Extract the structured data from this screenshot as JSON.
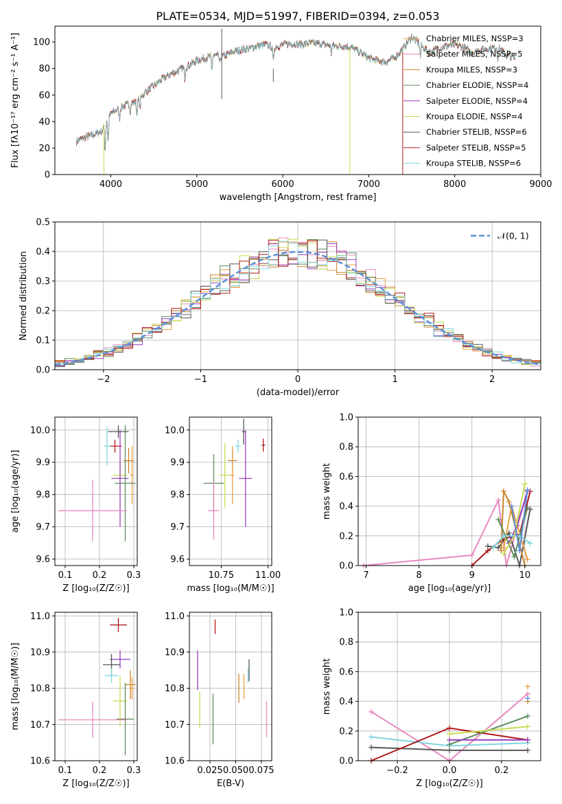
{
  "figure": {
    "title": "PLATE=0534, MJD=51997, FIBERID=0394, z=0.053"
  },
  "colors": {
    "chabrier_miles": "#e8a040",
    "salpeter_miles": "#e889c0",
    "kroupa_miles": "#c8842a",
    "chabrier_elodie": "#5c8c5c",
    "salpeter_elodie": "#9b3fbf",
    "kroupa_elodie": "#c8dc50",
    "chabrier_stelib": "#555555",
    "salpeter_stelib": "#b01818",
    "kroupa_stelib": "#7fd6e0",
    "normal_curve": "#5b8fd9",
    "grid": "#b0b0b0"
  },
  "chart_data": [
    {
      "id": "spectrum",
      "type": "line",
      "xlabel": "wavelength [Angstrom, rest frame]",
      "ylabel": "Flux [fλ10⁻¹⁷ erg cm⁻² s⁻¹ A⁻¹]",
      "xlim": [
        3350,
        9000
      ],
      "ylim": [
        0,
        112
      ],
      "xticks": [
        4000,
        5000,
        6000,
        7000,
        8000,
        9000
      ],
      "yticks": [
        0,
        20,
        40,
        60,
        80,
        100
      ],
      "grid": false,
      "legend_position": "upper-right",
      "series": [
        {
          "name": "Chabrier MILES, NSSP=3",
          "color_key": "chabrier_miles"
        },
        {
          "name": "Salpeter MILES, NSSP=5",
          "color_key": "salpeter_miles"
        },
        {
          "name": "Kroupa MILES, NSSP=3",
          "color_key": "kroupa_miles"
        },
        {
          "name": "Chabrier ELODIE, NSSP=4",
          "color_key": "chabrier_elodie"
        },
        {
          "name": "Salpeter ELODIE, NSSP=4",
          "color_key": "salpeter_elodie"
        },
        {
          "name": "Kroupa ELODIE, NSSP=4",
          "color_key": "kroupa_elodie"
        },
        {
          "name": "Chabrier STELIB, NSSP=6",
          "color_key": "chabrier_stelib"
        },
        {
          "name": "Salpeter STELIB, NSSP=5",
          "color_key": "salpeter_stelib"
        },
        {
          "name": "Kroupa STELIB, NSSP=6",
          "color_key": "kroupa_stelib"
        }
      ],
      "continuum": [
        [
          3600,
          25
        ],
        [
          3700,
          28
        ],
        [
          3800,
          30
        ],
        [
          3900,
          33
        ],
        [
          3950,
          40
        ],
        [
          4000,
          46
        ],
        [
          4100,
          50
        ],
        [
          4200,
          53
        ],
        [
          4300,
          55
        ],
        [
          4400,
          62
        ],
        [
          4500,
          67
        ],
        [
          4600,
          72
        ],
        [
          4700,
          76
        ],
        [
          4800,
          79
        ],
        [
          4900,
          82
        ],
        [
          5000,
          86
        ],
        [
          5100,
          88
        ],
        [
          5200,
          90
        ],
        [
          5300,
          89
        ],
        [
          5400,
          92
        ],
        [
          5500,
          94
        ],
        [
          5600,
          95
        ],
        [
          5700,
          97
        ],
        [
          5800,
          98
        ],
        [
          5900,
          96
        ],
        [
          6000,
          98
        ],
        [
          6100,
          99
        ],
        [
          6200,
          98
        ],
        [
          6300,
          99
        ],
        [
          6400,
          99
        ],
        [
          6500,
          98
        ],
        [
          6600,
          97
        ],
        [
          6700,
          97
        ],
        [
          6800,
          96
        ],
        [
          6900,
          92
        ],
        [
          7000,
          88
        ],
        [
          7100,
          86
        ],
        [
          7200,
          85
        ],
        [
          7300,
          88
        ],
        [
          7400,
          95
        ],
        [
          7500,
          104
        ],
        [
          7600,
          98
        ],
        [
          7700,
          92
        ],
        [
          7800,
          95
        ],
        [
          7900,
          97
        ],
        [
          8000,
          98
        ],
        [
          8100,
          96
        ],
        [
          8200,
          92
        ],
        [
          8300,
          94
        ],
        [
          8400,
          95
        ],
        [
          8500,
          96
        ],
        [
          8600,
          90
        ],
        [
          8700,
          88
        ]
      ],
      "absorption_lines": [
        [
          3934,
          20
        ],
        [
          3969,
          18
        ],
        [
          4101,
          8
        ],
        [
          4227,
          6
        ],
        [
          4304,
          10
        ],
        [
          4340,
          8
        ],
        [
          4861,
          8
        ],
        [
          5175,
          12
        ],
        [
          5270,
          6
        ],
        [
          5890,
          12
        ],
        [
          6563,
          6
        ],
        [
          7600,
          10
        ],
        [
          8500,
          8
        ]
      ],
      "spikes": [
        {
          "x": 3920,
          "y0": 0,
          "y1": 38,
          "color_key": "kroupa_elodie"
        },
        {
          "x": 5290,
          "y0": 57,
          "y1": 110,
          "color_key": "chabrier_stelib"
        },
        {
          "x": 6780,
          "y0": 0,
          "y1": 95,
          "color_key": "kroupa_elodie"
        },
        {
          "x": 7395,
          "y0": 0,
          "y1": 92,
          "color_key": "salpeter_stelib"
        },
        {
          "x": 5890,
          "y0": 70,
          "y1": 80,
          "color_key": "chabrier_stelib"
        }
      ]
    },
    {
      "id": "residuals",
      "type": "histogram",
      "xlabel": "(data-model)/error",
      "ylabel": "Normed distribution",
      "xlim": [
        -2.5,
        2.5
      ],
      "ylim": [
        0,
        0.5
      ],
      "xticks": [
        -2,
        -1,
        0,
        1,
        2
      ],
      "yticks": [
        0.0,
        0.1,
        0.2,
        0.3,
        0.4,
        0.5
      ],
      "grid": true,
      "legend_position": "upper-right",
      "curve": {
        "name": "𝒩(0, 1)",
        "mean": 0,
        "sigma": 1,
        "color_key": "normal_curve"
      },
      "bin_width": 0.1
    },
    {
      "id": "age_vs_z",
      "type": "errorbar",
      "xlabel": "Z [log₁₀(Z/Z☉)]",
      "ylabel": "age  [log₁₀(age/yr)]",
      "xlim": [
        0.07,
        0.31
      ],
      "ylim": [
        9.58,
        10.04
      ],
      "xticks": [
        0.1,
        0.2,
        0.3
      ],
      "yticks": [
        9.6,
        9.7,
        9.8,
        9.9,
        10.0
      ],
      "grid": true,
      "points": [
        {
          "x": 0.255,
          "y": 9.995,
          "xerr": 0.03,
          "yerr": 0.02,
          "c": "chabrier_stelib"
        },
        {
          "x": 0.245,
          "y": 9.95,
          "xerr": 0.02,
          "yerr": 0.02,
          "c": "salpeter_stelib"
        },
        {
          "x": 0.222,
          "y": 9.95,
          "xerr": 0.01,
          "yerr": 0.06,
          "c": "kroupa_stelib"
        },
        {
          "x": 0.285,
          "y": 9.905,
          "xerr": 0.015,
          "yerr": 0.04,
          "c": "kroupa_miles"
        },
        {
          "x": 0.295,
          "y": 9.86,
          "xerr": 0.005,
          "yerr": 0.09,
          "c": "chabrier_miles"
        },
        {
          "x": 0.26,
          "y": 9.86,
          "xerr": 0.02,
          "yerr": 0.05,
          "c": "kroupa_elodie"
        },
        {
          "x": 0.26,
          "y": 9.85,
          "xerr": 0.025,
          "yerr": 0.15,
          "c": "salpeter_elodie"
        },
        {
          "x": 0.275,
          "y": 9.835,
          "xerr": 0.03,
          "yerr": 0.18,
          "c": "chabrier_elodie"
        },
        {
          "x": 0.18,
          "y": 9.75,
          "xerr": 0.1,
          "yerr": 0.095,
          "c": "salpeter_miles"
        }
      ]
    },
    {
      "id": "age_vs_mass",
      "type": "errorbar",
      "xlabel": "mass [log₁₀(M/M☉)]",
      "ylabel": "",
      "xlim": [
        10.58,
        11.02
      ],
      "ylim": [
        9.58,
        10.04
      ],
      "xticks": [
        10.75,
        11.0
      ],
      "yticks": [
        9.6,
        9.7,
        9.8,
        9.9,
        10.0
      ],
      "grid": true,
      "points": [
        {
          "x": 10.87,
          "y": 9.995,
          "xerr": 0.01,
          "yerr": 0.04,
          "c": "chabrier_stelib"
        },
        {
          "x": 10.975,
          "y": 9.953,
          "xerr": 0.01,
          "yerr": 0.02,
          "c": "salpeter_stelib"
        },
        {
          "x": 10.84,
          "y": 9.95,
          "xerr": 0.015,
          "yerr": 0.02,
          "c": "kroupa_stelib"
        },
        {
          "x": 10.81,
          "y": 9.905,
          "xerr": 0.025,
          "yerr": 0.03,
          "c": "kroupa_miles"
        },
        {
          "x": 10.81,
          "y": 9.86,
          "xerr": 0.01,
          "yerr": 0.09,
          "c": "chabrier_miles"
        },
        {
          "x": 10.77,
          "y": 9.86,
          "xerr": 0.03,
          "yerr": 0.1,
          "c": "kroupa_elodie"
        },
        {
          "x": 10.88,
          "y": 9.85,
          "xerr": 0.035,
          "yerr": 0.15,
          "c": "salpeter_elodie"
        },
        {
          "x": 10.71,
          "y": 9.835,
          "xerr": 0.055,
          "yerr": 0.09,
          "c": "chabrier_elodie"
        },
        {
          "x": 10.71,
          "y": 9.75,
          "xerr": 0.03,
          "yerr": 0.09,
          "c": "salpeter_miles"
        }
      ]
    },
    {
      "id": "weight_vs_age",
      "type": "line",
      "xlabel": "age  [log₁₀(age/yr)]",
      "ylabel": "mass weight",
      "xlim": [
        6.85,
        10.3
      ],
      "ylim": [
        0,
        1.0
      ],
      "xticks": [
        7,
        8,
        9,
        10
      ],
      "yticks": [
        0.0,
        0.2,
        0.4,
        0.6,
        0.8,
        1.0
      ],
      "grid": true,
      "series": [
        {
          "c": "salpeter_miles",
          "x": [
            6.95,
            9.0,
            9.5,
            9.65,
            10.05
          ],
          "y": [
            0.0,
            0.07,
            0.44,
            0.0,
            0.5
          ]
        },
        {
          "c": "salpeter_stelib",
          "x": [
            9.0,
            9.3,
            9.6,
            9.9,
            10.1
          ],
          "y": [
            0.0,
            0.1,
            0.18,
            0.21,
            0.5
          ]
        },
        {
          "c": "chabrier_stelib",
          "x": [
            9.3,
            9.5,
            9.7,
            9.9,
            10.1
          ],
          "y": [
            0.13,
            0.12,
            0.22,
            0.0,
            0.38
          ]
        },
        {
          "c": "kroupa_miles",
          "x": [
            9.55,
            9.6,
            9.7,
            10.0
          ],
          "y": [
            0.1,
            0.5,
            0.43,
            0.0
          ]
        },
        {
          "c": "chabrier_miles",
          "x": [
            9.6,
            9.75,
            10.05
          ],
          "y": [
            0.12,
            0.4,
            0.04
          ]
        },
        {
          "c": "salpeter_elodie",
          "x": [
            9.7,
            9.85,
            10.05
          ],
          "y": [
            0.15,
            0.27,
            0.5
          ]
        },
        {
          "c": "chabrier_elodie",
          "x": [
            9.5,
            9.8,
            10.05
          ],
          "y": [
            0.31,
            0.06,
            0.39
          ]
        },
        {
          "c": "kroupa_elodie",
          "x": [
            9.6,
            9.8,
            10.0
          ],
          "y": [
            0.08,
            0.2,
            0.55
          ]
        },
        {
          "c": "kroupa_stelib",
          "x": [
            9.4,
            9.6,
            9.9,
            10.1
          ],
          "y": [
            0.12,
            0.2,
            0.2,
            0.15
          ]
        },
        {
          "c": "normal_curve",
          "x": [
            9.75,
            9.9,
            10.05
          ],
          "y": [
            0.4,
            0.1,
            0.51
          ]
        }
      ]
    },
    {
      "id": "mass_vs_z",
      "type": "errorbar",
      "xlabel": "Z [log₁₀(Z/Z☉)]",
      "ylabel": "mass [log₁₀(M/M☉)]",
      "xlim": [
        0.07,
        0.31
      ],
      "ylim": [
        10.6,
        11.01
      ],
      "xticks": [
        0.1,
        0.2,
        0.3
      ],
      "yticks": [
        10.6,
        10.7,
        10.8,
        10.9,
        11.0
      ],
      "grid": true,
      "points": [
        {
          "x": 0.255,
          "y": 10.975,
          "xerr": 0.025,
          "yerr": 0.02,
          "c": "salpeter_stelib"
        },
        {
          "x": 0.26,
          "y": 10.88,
          "xerr": 0.03,
          "yerr": 0.025,
          "c": "salpeter_elodie"
        },
        {
          "x": 0.235,
          "y": 10.865,
          "xerr": 0.025,
          "yerr": 0.03,
          "c": "chabrier_stelib"
        },
        {
          "x": 0.235,
          "y": 10.835,
          "xerr": 0.02,
          "yerr": 0.02,
          "c": "kroupa_stelib"
        },
        {
          "x": 0.29,
          "y": 10.81,
          "xerr": 0.015,
          "yerr": 0.04,
          "c": "kroupa_miles"
        },
        {
          "x": 0.295,
          "y": 10.8,
          "xerr": 0.005,
          "yerr": 0.03,
          "c": "chabrier_miles"
        },
        {
          "x": 0.26,
          "y": 10.765,
          "xerr": 0.02,
          "yerr": 0.07,
          "c": "kroupa_elodie"
        },
        {
          "x": 0.275,
          "y": 10.715,
          "xerr": 0.025,
          "yerr": 0.1,
          "c": "chabrier_elodie"
        },
        {
          "x": 0.18,
          "y": 10.713,
          "xerr": 0.1,
          "yerr": 0.05,
          "c": "salpeter_miles"
        }
      ]
    },
    {
      "id": "mass_vs_ebv",
      "type": "errorbar",
      "xlabel": "E(B-V)",
      "ylabel": "",
      "xlim": [
        0.005,
        0.085
      ],
      "ylim": [
        10.6,
        11.01
      ],
      "xticks": [
        0.025,
        0.05,
        0.075
      ],
      "yticks": [
        10.6,
        10.7,
        10.8,
        10.9,
        11.0
      ],
      "grid": true,
      "points": [
        {
          "x": 0.03,
          "y": 10.97,
          "xerr": 0.0,
          "yerr": 0.02,
          "c": "salpeter_stelib"
        },
        {
          "x": 0.013,
          "y": 10.85,
          "xerr": 0.0,
          "yerr": 0.055,
          "c": "salpeter_elodie"
        },
        {
          "x": 0.063,
          "y": 10.85,
          "xerr": 0.0,
          "yerr": 0.03,
          "c": "chabrier_stelib"
        },
        {
          "x": 0.062,
          "y": 10.835,
          "xerr": 0.0,
          "yerr": 0.02,
          "c": "kroupa_stelib"
        },
        {
          "x": 0.053,
          "y": 10.8,
          "xerr": 0.0,
          "yerr": 0.04,
          "c": "kroupa_miles"
        },
        {
          "x": 0.058,
          "y": 10.805,
          "xerr": 0.0,
          "yerr": 0.035,
          "c": "chabrier_miles"
        },
        {
          "x": 0.015,
          "y": 10.74,
          "xerr": 0.0,
          "yerr": 0.05,
          "c": "kroupa_elodie"
        },
        {
          "x": 0.028,
          "y": 10.715,
          "xerr": 0.0,
          "yerr": 0.07,
          "c": "chabrier_elodie"
        },
        {
          "x": 0.08,
          "y": 10.715,
          "xerr": 0.0,
          "yerr": 0.05,
          "c": "salpeter_miles"
        }
      ]
    },
    {
      "id": "weight_vs_z",
      "type": "line",
      "xlabel": "Z [log₁₀(Z/Z☉)]",
      "ylabel": "mass weight",
      "xlim": [
        -0.35,
        0.35
      ],
      "ylim": [
        0,
        1.0
      ],
      "xticks": [
        -0.2,
        0.0,
        0.2
      ],
      "yticks": [
        0.0,
        0.2,
        0.4,
        0.6,
        0.8,
        1.0
      ],
      "grid": true,
      "series": [
        {
          "c": "salpeter_miles",
          "x": [
            -0.3,
            0.0,
            0.3
          ],
          "y": [
            0.33,
            0.0,
            0.45
          ]
        },
        {
          "c": "kroupa_stelib",
          "x": [
            -0.3,
            0.0,
            0.3
          ],
          "y": [
            0.16,
            0.1,
            0.12
          ]
        },
        {
          "c": "chabrier_stelib",
          "x": [
            -0.3,
            0.0,
            0.3
          ],
          "y": [
            0.09,
            0.07,
            0.07
          ]
        },
        {
          "c": "salpeter_stelib",
          "x": [
            -0.3,
            0.0,
            0.3
          ],
          "y": [
            0.0,
            0.22,
            0.14
          ]
        },
        {
          "c": "chabrier_elodie",
          "x": [
            0.0,
            0.3
          ],
          "y": [
            0.11,
            0.3
          ]
        },
        {
          "c": "kroupa_elodie",
          "x": [
            0.0,
            0.3
          ],
          "y": [
            0.18,
            0.23
          ]
        },
        {
          "c": "salpeter_elodie",
          "x": [
            0.0,
            0.3
          ],
          "y": [
            0.14,
            0.14
          ]
        },
        {
          "c": "chabrier_miles",
          "x": [
            0.3
          ],
          "y": [
            0.5
          ]
        },
        {
          "c": "kroupa_miles",
          "x": [
            0.3
          ],
          "y": [
            0.4
          ]
        },
        {
          "c": "normal_curve",
          "x": [
            0.3
          ],
          "y": [
            0.42
          ]
        }
      ]
    }
  ]
}
